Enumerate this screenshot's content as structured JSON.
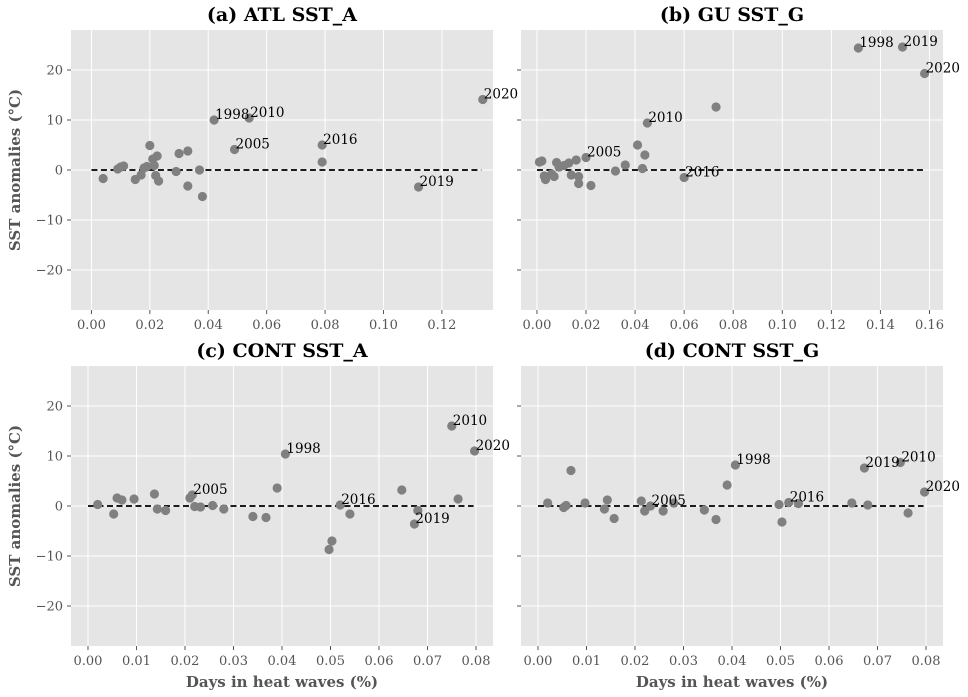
{
  "chart_data": [
    {
      "type": "scatter",
      "title": "(a) ATL SST_A",
      "xlabel": "",
      "ylabel": "SST anomalies (°C)",
      "xlim": [
        -0.007,
        0.1375
      ],
      "ylim": [
        -28,
        28
      ],
      "xticks": [
        0.0,
        0.02,
        0.04,
        0.06,
        0.08,
        0.1,
        0.12
      ],
      "xtick_labels": [
        "0.00",
        "0.02",
        "0.04",
        "0.06",
        "0.08",
        "0.10",
        "0.12"
      ],
      "yticks": [
        -20,
        -10,
        0,
        10,
        20
      ],
      "ytick_labels": [
        "−20",
        "−10",
        "0",
        "10",
        "20"
      ],
      "show_ytick_labels": true,
      "baseline": {
        "x": [
          0.0,
          0.1335
        ],
        "y": 0
      },
      "points": [
        {
          "x": 0.004,
          "y": -1.7
        },
        {
          "x": 0.009,
          "y": 0.2
        },
        {
          "x": 0.01,
          "y": 0.6
        },
        {
          "x": 0.011,
          "y": 0.8
        },
        {
          "x": 0.015,
          "y": -1.9
        },
        {
          "x": 0.017,
          "y": -1.0
        },
        {
          "x": 0.018,
          "y": 0.4
        },
        {
          "x": 0.019,
          "y": 0.7
        },
        {
          "x": 0.02,
          "y": 4.9
        },
        {
          "x": 0.021,
          "y": 2.2
        },
        {
          "x": 0.0215,
          "y": 0.9
        },
        {
          "x": 0.022,
          "y": -1.1
        },
        {
          "x": 0.0225,
          "y": 2.8
        },
        {
          "x": 0.023,
          "y": -2.2
        },
        {
          "x": 0.029,
          "y": -0.3
        },
        {
          "x": 0.03,
          "y": 3.3
        },
        {
          "x": 0.033,
          "y": 3.8
        },
        {
          "x": 0.033,
          "y": -3.2
        },
        {
          "x": 0.037,
          "y": 0.0
        },
        {
          "x": 0.038,
          "y": -5.3
        },
        {
          "x": 0.042,
          "y": 10.0
        },
        {
          "x": 0.049,
          "y": 4.1
        },
        {
          "x": 0.054,
          "y": 10.4
        },
        {
          "x": 0.079,
          "y": 5.0
        },
        {
          "x": 0.079,
          "y": 1.6
        },
        {
          "x": 0.112,
          "y": -3.4
        },
        {
          "x": 0.134,
          "y": 14.1
        }
      ],
      "annotations": [
        {
          "text": "1998",
          "x": 0.042,
          "y": 10.0
        },
        {
          "text": "2010",
          "x": 0.054,
          "y": 10.4
        },
        {
          "text": "2005",
          "x": 0.049,
          "y": 4.1
        },
        {
          "text": "2016",
          "x": 0.079,
          "y": 5.0
        },
        {
          "text": "2019",
          "x": 0.112,
          "y": -3.4
        },
        {
          "text": "2020",
          "x": 0.134,
          "y": 14.1
        }
      ]
    },
    {
      "type": "scatter",
      "title": "(b) GU SST_G",
      "xlabel": "",
      "ylabel": "",
      "xlim": [
        -0.0065,
        0.1655
      ],
      "ylim": [
        -28,
        28
      ],
      "xticks": [
        0.0,
        0.02,
        0.04,
        0.06,
        0.08,
        0.1,
        0.12,
        0.14,
        0.16
      ],
      "xtick_labels": [
        "0.00",
        "0.02",
        "0.04",
        "0.06",
        "0.08",
        "0.10",
        "0.12",
        "0.14",
        "0.16"
      ],
      "yticks": [
        -20,
        -10,
        0,
        10,
        20
      ],
      "ytick_labels": [
        "",
        "",
        "",
        "",
        ""
      ],
      "show_ytick_labels": false,
      "baseline": {
        "x": [
          0.0,
          0.1575
        ],
        "y": 0
      },
      "points": [
        {
          "x": 0.001,
          "y": 1.6
        },
        {
          "x": 0.002,
          "y": 1.8
        },
        {
          "x": 0.003,
          "y": -1.2
        },
        {
          "x": 0.0035,
          "y": -1.9
        },
        {
          "x": 0.006,
          "y": -0.8
        },
        {
          "x": 0.007,
          "y": -1.3
        },
        {
          "x": 0.008,
          "y": 1.5
        },
        {
          "x": 0.009,
          "y": 0.6
        },
        {
          "x": 0.011,
          "y": 0.9
        },
        {
          "x": 0.013,
          "y": 1.4
        },
        {
          "x": 0.014,
          "y": -1.0
        },
        {
          "x": 0.016,
          "y": 2.0
        },
        {
          "x": 0.017,
          "y": -1.3
        },
        {
          "x": 0.017,
          "y": -2.7
        },
        {
          "x": 0.02,
          "y": 2.5
        },
        {
          "x": 0.022,
          "y": -3.1
        },
        {
          "x": 0.032,
          "y": -0.2
        },
        {
          "x": 0.036,
          "y": 1.0
        },
        {
          "x": 0.041,
          "y": 5.0
        },
        {
          "x": 0.043,
          "y": 0.3
        },
        {
          "x": 0.044,
          "y": 3.0
        },
        {
          "x": 0.045,
          "y": 9.4
        },
        {
          "x": 0.06,
          "y": -1.5
        },
        {
          "x": 0.073,
          "y": 12.6
        },
        {
          "x": 0.131,
          "y": 24.4
        },
        {
          "x": 0.149,
          "y": 24.6
        },
        {
          "x": 0.158,
          "y": 19.3
        }
      ],
      "annotations": [
        {
          "text": "1998",
          "x": 0.131,
          "y": 24.4
        },
        {
          "text": "2019",
          "x": 0.149,
          "y": 24.6
        },
        {
          "text": "2020",
          "x": 0.158,
          "y": 19.3
        },
        {
          "text": "2010",
          "x": 0.045,
          "y": 9.4
        },
        {
          "text": "2005",
          "x": 0.02,
          "y": 2.5
        },
        {
          "text": "2016",
          "x": 0.06,
          "y": -1.5
        }
      ]
    },
    {
      "type": "scatter",
      "title": "(c) CONT SST_A",
      "xlabel": "Days in heat waves (%)",
      "ylabel": "SST anomalies (°C)",
      "xlim": [
        -0.0035,
        0.0835
      ],
      "ylim": [
        -28,
        28
      ],
      "xticks": [
        0.0,
        0.01,
        0.02,
        0.03,
        0.04,
        0.05,
        0.06,
        0.07,
        0.08
      ],
      "xtick_labels": [
        "0.00",
        "0.01",
        "0.02",
        "0.03",
        "0.04",
        "0.05",
        "0.06",
        "0.07",
        "0.08"
      ],
      "yticks": [
        -20,
        -10,
        0,
        10,
        20
      ],
      "ytick_labels": [
        "−20",
        "−10",
        "0",
        "10",
        "20"
      ],
      "show_ytick_labels": true,
      "baseline": {
        "x": [
          0.0,
          0.0795
        ],
        "y": 0
      },
      "points": [
        {
          "x": 0.002,
          "y": 0.3
        },
        {
          "x": 0.0053,
          "y": -1.6
        },
        {
          "x": 0.006,
          "y": 1.6
        },
        {
          "x": 0.007,
          "y": 1.2
        },
        {
          "x": 0.0095,
          "y": 1.4
        },
        {
          "x": 0.0137,
          "y": 2.4
        },
        {
          "x": 0.0143,
          "y": -0.6
        },
        {
          "x": 0.016,
          "y": -0.9
        },
        {
          "x": 0.021,
          "y": 1.6
        },
        {
          "x": 0.0215,
          "y": 2.2
        },
        {
          "x": 0.022,
          "y": -0.1
        },
        {
          "x": 0.0232,
          "y": -0.2
        },
        {
          "x": 0.0257,
          "y": 0.1
        },
        {
          "x": 0.028,
          "y": -0.6
        },
        {
          "x": 0.034,
          "y": -2.1
        },
        {
          "x": 0.0367,
          "y": -2.3
        },
        {
          "x": 0.039,
          "y": 3.6
        },
        {
          "x": 0.0407,
          "y": 10.4
        },
        {
          "x": 0.0497,
          "y": -8.7
        },
        {
          "x": 0.0503,
          "y": -7.0
        },
        {
          "x": 0.052,
          "y": 0.2
        },
        {
          "x": 0.054,
          "y": -1.6
        },
        {
          "x": 0.0647,
          "y": 3.2
        },
        {
          "x": 0.0673,
          "y": -3.6
        },
        {
          "x": 0.068,
          "y": -0.9
        },
        {
          "x": 0.075,
          "y": 16.0
        },
        {
          "x": 0.0763,
          "y": 1.4
        },
        {
          "x": 0.0797,
          "y": 11.0
        }
      ],
      "annotations": [
        {
          "text": "2010",
          "x": 0.075,
          "y": 16.0
        },
        {
          "text": "2020",
          "x": 0.0797,
          "y": 11.0
        },
        {
          "text": "1998",
          "x": 0.0407,
          "y": 10.4
        },
        {
          "text": "2005",
          "x": 0.0215,
          "y": 2.2
        },
        {
          "text": "2016",
          "x": 0.052,
          "y": 0.2
        },
        {
          "text": "2019",
          "x": 0.0673,
          "y": -3.6
        }
      ]
    },
    {
      "type": "scatter",
      "title": "(d) CONT SST_G",
      "xlabel": "Days in heat waves (%)",
      "ylabel": "",
      "xlim": [
        -0.0035,
        0.0835
      ],
      "ylim": [
        -28,
        28
      ],
      "xticks": [
        0.0,
        0.01,
        0.02,
        0.03,
        0.04,
        0.05,
        0.06,
        0.07,
        0.08
      ],
      "xtick_labels": [
        "0.00",
        "0.01",
        "0.02",
        "0.03",
        "0.04",
        "0.05",
        "0.06",
        "0.07",
        "0.08"
      ],
      "yticks": [
        -20,
        -10,
        0,
        10,
        20
      ],
      "ytick_labels": [
        "",
        "",
        "",
        "",
        ""
      ],
      "show_ytick_labels": false,
      "baseline": {
        "x": [
          0.0,
          0.0795
        ],
        "y": 0
      },
      "points": [
        {
          "x": 0.002,
          "y": 0.6
        },
        {
          "x": 0.0053,
          "y": -0.3
        },
        {
          "x": 0.0058,
          "y": 0.1
        },
        {
          "x": 0.0068,
          "y": 7.1
        },
        {
          "x": 0.0097,
          "y": 0.6
        },
        {
          "x": 0.0137,
          "y": -0.6
        },
        {
          "x": 0.0143,
          "y": 1.2
        },
        {
          "x": 0.0157,
          "y": -2.5
        },
        {
          "x": 0.0213,
          "y": 1.0
        },
        {
          "x": 0.022,
          "y": -1.0
        },
        {
          "x": 0.0232,
          "y": 0.0
        },
        {
          "x": 0.0258,
          "y": -1.0
        },
        {
          "x": 0.028,
          "y": 0.6
        },
        {
          "x": 0.0343,
          "y": -0.8
        },
        {
          "x": 0.0367,
          "y": -2.7
        },
        {
          "x": 0.039,
          "y": 4.2
        },
        {
          "x": 0.0407,
          "y": 8.2
        },
        {
          "x": 0.0497,
          "y": 0.3
        },
        {
          "x": 0.0503,
          "y": -3.2
        },
        {
          "x": 0.0517,
          "y": 0.7
        },
        {
          "x": 0.0537,
          "y": 0.5
        },
        {
          "x": 0.0647,
          "y": 0.6
        },
        {
          "x": 0.0673,
          "y": 7.6
        },
        {
          "x": 0.068,
          "y": 0.2
        },
        {
          "x": 0.0747,
          "y": 8.7
        },
        {
          "x": 0.0763,
          "y": -1.4
        },
        {
          "x": 0.0797,
          "y": 2.8
        }
      ],
      "annotations": [
        {
          "text": "1998",
          "x": 0.0407,
          "y": 8.2
        },
        {
          "text": "2019",
          "x": 0.0673,
          "y": 7.6
        },
        {
          "text": "2010",
          "x": 0.0747,
          "y": 8.7
        },
        {
          "text": "2020",
          "x": 0.0797,
          "y": 2.8
        },
        {
          "text": "2005",
          "x": 0.0232,
          "y": 0.0
        },
        {
          "text": "2016",
          "x": 0.0517,
          "y": 0.7
        }
      ]
    }
  ],
  "colors": {
    "panel_bg": "#e5e5e5",
    "grid": "#ffffff",
    "marker": "#808080",
    "baseline": "#000000",
    "tick_text": "#555555",
    "title_text": "#000000"
  }
}
